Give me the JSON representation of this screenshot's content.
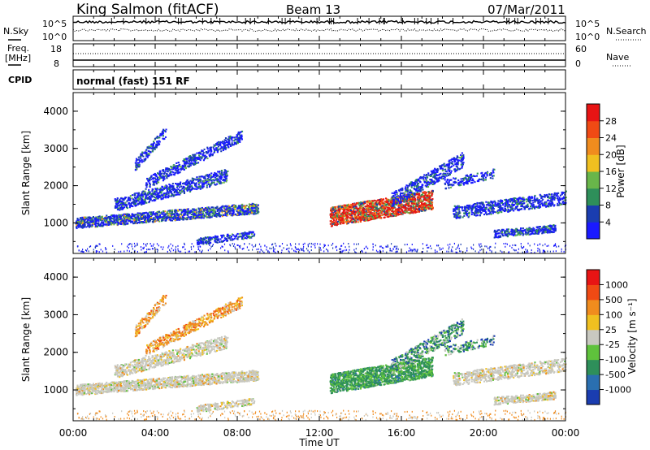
{
  "header": {
    "title": "King Salmon (fitACF)",
    "beam": "Beam 13",
    "date": "07/Mar/2011"
  },
  "noise_panel": {
    "left_label": "N.Sky",
    "right_label": "N.Search",
    "left_ticks": [
      "10^5",
      "10^0"
    ],
    "right_ticks": [
      "10^5",
      "10^0"
    ]
  },
  "freq_panel": {
    "left_label_line1": "Freq.",
    "left_label_line2": "[MHz]",
    "left_ticks": [
      "18",
      "8"
    ],
    "right_label": "Nave",
    "right_ticks": [
      "60",
      "0"
    ],
    "cpid_label": "CPID"
  },
  "mode_text": "normal (fast) 151 RF",
  "xaxis": {
    "label": "Time UT",
    "ticks": [
      "00:00",
      "04:00",
      "08:00",
      "12:00",
      "16:00",
      "20:00",
      "00:00"
    ]
  },
  "power_panel": {
    "ylabel": "Slant Range [km]",
    "yticks": [
      "4000",
      "3000",
      "2000",
      "1000"
    ],
    "colorbar_label": "Power [dB]",
    "colorbar_ticks": [
      "28",
      "24",
      "20",
      "16",
      "12",
      "8",
      "4"
    ],
    "colors": [
      "#1a1aff",
      "#1a3db0",
      "#2e8f5a",
      "#69b64a",
      "#f0c020",
      "#f08c1e",
      "#f04a14",
      "#e81414"
    ]
  },
  "velocity_panel": {
    "ylabel": "Slant Range [km]",
    "yticks": [
      "4000",
      "3000",
      "2000",
      "1000"
    ],
    "colorbar_label": "Velocity [m s⁻¹]",
    "colorbar_ticks": [
      "1000",
      "500",
      "100",
      "25",
      "-25",
      "-100",
      "-500",
      "-1000"
    ],
    "colors": [
      "#1a3db0",
      "#2a6fb0",
      "#2e8f5a",
      "#5fc23c",
      "#c8c8c0",
      "#f0c020",
      "#f08c1e",
      "#f04a14",
      "#e81414"
    ]
  },
  "chart_data": {
    "type": "heatmap",
    "title": "King Salmon (fitACF)",
    "subtitle": "Beam 13",
    "xlabel": "Time UT",
    "ylabel": "Slant Range [km]",
    "x_range_hours": [
      0,
      24
    ],
    "y_range_km": [
      180,
      4500
    ],
    "power_colorbar_range_db": [
      0,
      30
    ],
    "velocity_colorbar_ticks_ms": [
      1000,
      500,
      100,
      25,
      -25,
      -100,
      -500,
      -1000
    ]
  }
}
